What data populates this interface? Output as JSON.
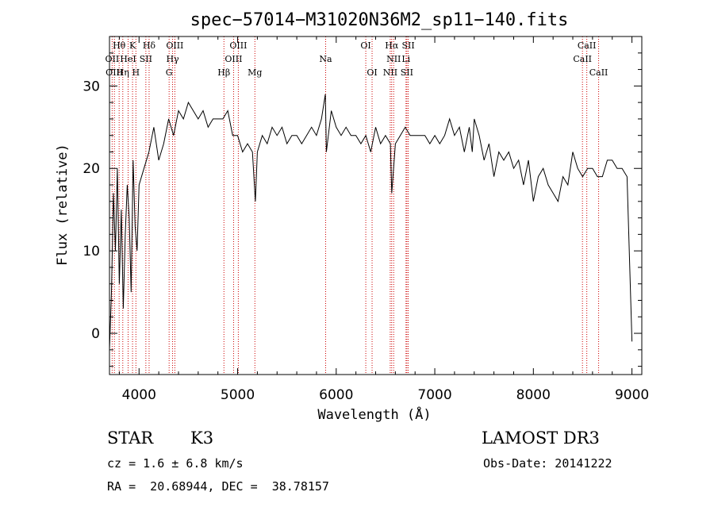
{
  "chart_data": {
    "type": "line",
    "title": "spec−57014−M31020N36M2_sp11−140.fits",
    "xlabel": "Wavelength (Å)",
    "ylabel": "Flux (relative)",
    "xlim": [
      3700,
      9100
    ],
    "ylim": [
      -5,
      36
    ],
    "xticks": [
      4000,
      5000,
      6000,
      7000,
      8000,
      9000
    ],
    "yticks": [
      0,
      10,
      20,
      30
    ],
    "line_color": "#000000",
    "marker_color": "#cc0000",
    "series": [
      {
        "x": [
          3700,
          3720,
          3740,
          3760,
          3780,
          3800,
          3820,
          3840,
          3860,
          3880,
          3900,
          3920,
          3940,
          3960,
          3980,
          4000,
          4050,
          4100,
          4150,
          4200,
          4250,
          4300,
          4350,
          4400,
          4450,
          4500,
          4550,
          4600,
          4650,
          4700,
          4750,
          4800,
          4850,
          4900,
          4950,
          5000,
          5050,
          5100,
          5150,
          5180,
          5200,
          5250,
          5300,
          5350,
          5400,
          5450,
          5500,
          5550,
          5600,
          5650,
          5700,
          5750,
          5800,
          5850,
          5890,
          5900,
          5950,
          6000,
          6050,
          6100,
          6150,
          6200,
          6250,
          6300,
          6350,
          6400,
          6450,
          6500,
          6550,
          6563,
          6600,
          6650,
          6700,
          6750,
          6800,
          6850,
          6900,
          6950,
          7000,
          7050,
          7100,
          7150,
          7200,
          7250,
          7300,
          7350,
          7380,
          7400,
          7450,
          7500,
          7550,
          7600,
          7650,
          7700,
          7750,
          7800,
          7850,
          7900,
          7950,
          8000,
          8050,
          8100,
          8150,
          8200,
          8250,
          8300,
          8350,
          8400,
          8450,
          8500,
          8550,
          8600,
          8650,
          8700,
          8750,
          8800,
          8850,
          8900,
          8950,
          9000
        ],
        "y": [
          -2,
          5,
          17,
          10,
          20,
          6,
          15,
          3,
          12,
          18,
          14,
          5,
          21,
          13,
          10,
          18,
          20,
          22,
          25,
          21,
          23,
          26,
          24,
          27,
          26,
          28,
          27,
          26,
          27,
          25,
          26,
          26,
          26,
          27,
          24,
          24,
          22,
          23,
          22,
          16,
          22,
          24,
          23,
          25,
          24,
          25,
          23,
          24,
          24,
          23,
          24,
          25,
          24,
          26,
          29,
          22,
          27,
          25,
          24,
          25,
          24,
          24,
          23,
          24,
          22,
          25,
          23,
          24,
          23,
          17,
          23,
          24,
          25,
          24,
          24,
          24,
          24,
          23,
          24,
          23,
          24,
          26,
          24,
          25,
          22,
          25,
          22,
          26,
          24,
          21,
          23,
          19,
          22,
          21,
          22,
          20,
          21,
          18,
          21,
          16,
          19,
          20,
          18,
          17,
          16,
          19,
          18,
          22,
          20,
          19,
          20,
          20,
          19,
          19,
          21,
          21,
          20,
          20,
          19,
          -1
        ]
      }
    ],
    "lines_top": [
      {
        "label": "Hθ",
        "wl": 3798
      },
      {
        "label": "K",
        "wl": 3934
      },
      {
        "label": "Hδ",
        "wl": 4102
      },
      {
        "label": "OIII",
        "wl": 4363
      },
      {
        "label": "OIII",
        "wl": 5007
      },
      {
        "label": "OI",
        "wl": 6300
      },
      {
        "label": "Hα",
        "wl": 6563
      },
      {
        "label": "SII",
        "wl": 6731
      },
      {
        "label": "CaII",
        "wl": 8542
      }
    ],
    "lines_mid": [
      {
        "label": "OII",
        "wl": 3727
      },
      {
        "label": "HeI",
        "wl": 3889
      },
      {
        "label": "SII",
        "wl": 4069
      },
      {
        "label": "Hγ",
        "wl": 4340
      },
      {
        "label": "OIII",
        "wl": 4959
      },
      {
        "label": "Na",
        "wl": 5893
      },
      {
        "label": "NII",
        "wl": 6583
      },
      {
        "label": "Li",
        "wl": 6708
      },
      {
        "label": "CaII",
        "wl": 8498
      }
    ],
    "lines_bot": [
      {
        "label": "OIII",
        "wl": 3750
      },
      {
        "label": "Hη",
        "wl": 3835
      },
      {
        "label": "H",
        "wl": 3968
      },
      {
        "label": "G",
        "wl": 4305
      },
      {
        "label": "Hβ",
        "wl": 4861
      },
      {
        "label": "Mg",
        "wl": 5175
      },
      {
        "label": "OI",
        "wl": 6364
      },
      {
        "label": "NII",
        "wl": 6548
      },
      {
        "label": "SII",
        "wl": 6717
      },
      {
        "label": "CaII",
        "wl": 8662
      }
    ]
  },
  "info": {
    "class_label": "STAR",
    "subclass": "K3",
    "survey": "LAMOST DR3",
    "cz": "cz = 1.6 ± 6.8 km/s",
    "obs_date": "Obs-Date: 20141222",
    "radec": "RA =  20.68944, DEC =  38.78157"
  }
}
